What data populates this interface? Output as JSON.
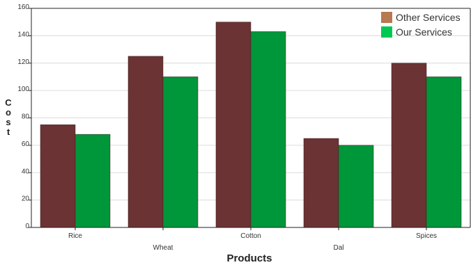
{
  "chart_data": {
    "type": "bar",
    "title": "",
    "xlabel": "Products",
    "ylabel": "Cost",
    "categories": [
      "Rice",
      "Wheat",
      "Cotton",
      "Dal",
      "Spices"
    ],
    "series": [
      {
        "name": "Other Services",
        "values": [
          75,
          125,
          150,
          65,
          120
        ],
        "color": "#6b3333"
      },
      {
        "name": "Our Services",
        "values": [
          68,
          110,
          143,
          60,
          110
        ],
        "color": "#00963a"
      }
    ],
    "ylim": [
      0,
      160
    ],
    "yticks": [
      0,
      20,
      40,
      60,
      80,
      100,
      120,
      140,
      160
    ],
    "grid": true,
    "legend": {
      "position": "top-right",
      "items": [
        {
          "label": "Other Services",
          "swatch": "#b87850"
        },
        {
          "label": "Our Services",
          "swatch": "#00c853"
        }
      ]
    }
  }
}
